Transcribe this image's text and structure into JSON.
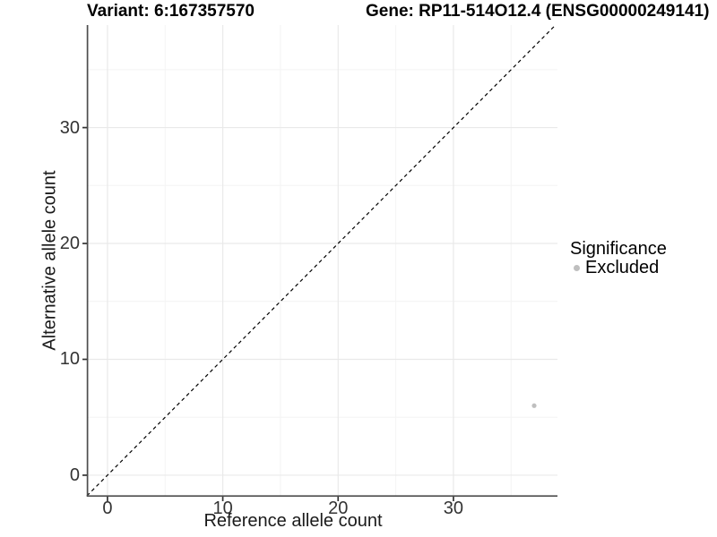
{
  "header": {
    "title_left": "Variant: 6:167357570",
    "title_right": "Gene: RP11-514O12.4 (ENSG00000249141)"
  },
  "chart_data": {
    "type": "scatter",
    "xlabel": "Reference allele count",
    "ylabel": "Alternative allele count",
    "xlim": [
      -1.78,
      39.02
    ],
    "ylim": [
      -1.78,
      38.85
    ],
    "x_ticks": [
      0,
      10,
      20,
      30
    ],
    "y_ticks": [
      0,
      10,
      20,
      30
    ],
    "x_minor_ticks": [
      5,
      15,
      25,
      35
    ],
    "y_minor_ticks": [
      5,
      15,
      25,
      35
    ],
    "grid": true,
    "identity_line": {
      "slope": 1,
      "intercept": 0,
      "style": "dashed",
      "color": "#000000"
    },
    "series": [
      {
        "name": "Excluded",
        "color": "#bfbfbf",
        "points": [
          {
            "x": 37,
            "y": 6
          }
        ]
      }
    ],
    "legend": {
      "position": "right",
      "title": "Significance",
      "items": [
        {
          "label": "Excluded",
          "color": "#bfbfbf",
          "marker": "circle"
        }
      ]
    },
    "style": {
      "panel_bg": "#ffffff",
      "axis_line_color": "#4d4d4d",
      "tick_mark_color": "#333333",
      "tick_label_color": "#333333",
      "grid_major_color": "#e9e9e9",
      "grid_minor_color": "#f4f4f4"
    }
  }
}
